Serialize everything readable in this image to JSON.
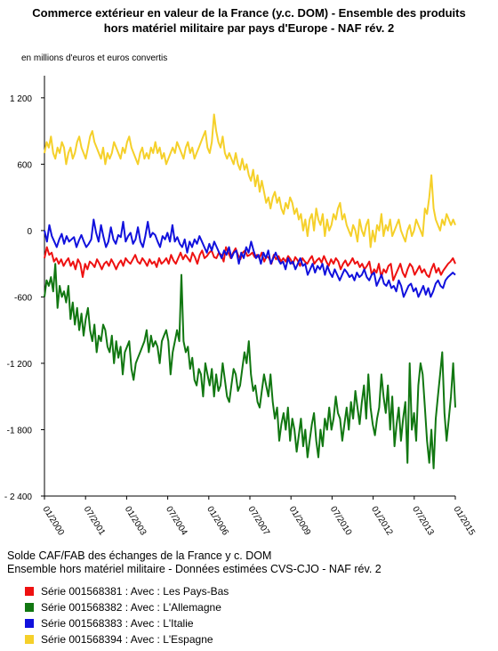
{
  "chart_data": {
    "type": "line",
    "title": "Commerce extérieur en valeur de la France (y.c. DOM) - Ensemble des produits",
    "subtitle": "hors matériel militaire par pays d'Europe - NAF rév. 2",
    "ylabel": "en millions d'euros et euros convertis",
    "ylim": [
      -2400,
      1400
    ],
    "yticks": [
      1200,
      600,
      0,
      -600,
      -1200,
      -1800,
      -2400
    ],
    "ytick_labels": [
      "1 200",
      "600",
      "0",
      "-600",
      "-1 200",
      "-1 800",
      "- 2 400"
    ],
    "xticks": [
      "01/2000",
      "07/2001",
      "01/2003",
      "07/2004",
      "01/2006",
      "07/2007",
      "01/2009",
      "07/2010",
      "01/2012",
      "07/2013",
      "01/2015"
    ],
    "x_start": "01/2000",
    "x_end": "01/2015",
    "caption_line1": "Solde CAF/FAB des échanges de la France y c. DOM",
    "caption_line2": "Ensemble hors matériel militaire - Données estimées CVS-CJO - NAF rév. 2",
    "series": [
      {
        "name": "Série 001568381 : Avec : Les Pays-Bas",
        "color": "#ee1111",
        "values": [
          -250,
          -150,
          -220,
          -200,
          -280,
          -250,
          -300,
          -260,
          -320,
          -280,
          -250,
          -320,
          -280,
          -350,
          -260,
          -300,
          -420,
          -300,
          -350,
          -280,
          -300,
          -330,
          -260,
          -300,
          -350,
          -300,
          -280,
          -320,
          -260,
          -300,
          -350,
          -300,
          -270,
          -320,
          -250,
          -280,
          -300,
          -260,
          -220,
          -280,
          -300,
          -250,
          -280,
          -320,
          -260,
          -300,
          -280,
          -330,
          -250,
          -300,
          -280,
          -250,
          -300,
          -220,
          -270,
          -300,
          -250,
          -200,
          -260,
          -220,
          -250,
          -280,
          -200,
          -240,
          -300,
          -220,
          -180,
          -250,
          -230,
          -200,
          -180,
          -240,
          -250,
          -200,
          -220,
          -280,
          -150,
          -200,
          -250,
          -200,
          -160,
          -220,
          -260,
          -200,
          -180,
          -230,
          -220,
          -200,
          -240,
          -220,
          -250,
          -200,
          -280,
          -230,
          -250,
          -300,
          -220,
          -260,
          -230,
          -280,
          -250,
          -280,
          -230,
          -260,
          -300,
          -240,
          -270,
          -320,
          -250,
          -280,
          -300,
          -260,
          -230,
          -300,
          -270,
          -250,
          -290,
          -230,
          -280,
          -320,
          -260,
          -300,
          -250,
          -280,
          -350,
          -300,
          -270,
          -320,
          -290,
          -250,
          -300,
          -280,
          -330,
          -300,
          -350,
          -320,
          -280,
          -400,
          -350,
          -380,
          -300,
          -420,
          -350,
          -380,
          -320,
          -300,
          -450,
          -400,
          -350,
          -300,
          -380,
          -420,
          -350,
          -300,
          -330,
          -400,
          -360,
          -320,
          -380,
          -350,
          -400,
          -420,
          -350,
          -300,
          -380,
          -340,
          -400,
          -360,
          -330,
          -300,
          -280,
          -250,
          -300
        ]
      },
      {
        "name": "Série 001568382 : Avec : L'Allemagne",
        "color": "#117711",
        "values": [
          -600,
          -450,
          -500,
          -420,
          -550,
          -300,
          -700,
          -500,
          -600,
          -550,
          -650,
          -500,
          -800,
          -650,
          -850,
          -700,
          -900,
          -750,
          -950,
          -800,
          -700,
          -900,
          -1000,
          -850,
          -1100,
          -950,
          -1000,
          -850,
          -900,
          -1050,
          -1100,
          -950,
          -1200,
          -1000,
          -1150,
          -1050,
          -1300,
          -1100,
          -1050,
          -1000,
          -1250,
          -1350,
          -1200,
          -1150,
          -1100,
          -1050,
          -1000,
          -900,
          -1100,
          -950,
          -1050,
          -1000,
          -1050,
          -1200,
          -1000,
          -950,
          -900,
          -1000,
          -1300,
          -1100,
          -1000,
          -900,
          -1000,
          -400,
          -1000,
          -1100,
          -1050,
          -1250,
          -1150,
          -1350,
          -1400,
          -1250,
          -1300,
          -1500,
          -1200,
          -1300,
          -1400,
          -1250,
          -1500,
          -1300,
          -1450,
          -1400,
          -1200,
          -1350,
          -1500,
          -1550,
          -1400,
          -1250,
          -1300,
          -1450,
          -1400,
          -1250,
          -1100,
          -1200,
          -1000,
          -1300,
          -1450,
          -1400,
          -1550,
          -1600,
          -1450,
          -1300,
          -1400,
          -1500,
          -1300,
          -1550,
          -1700,
          -1600,
          -1900,
          -1750,
          -1650,
          -1800,
          -1600,
          -1900,
          -1700,
          -1800,
          -2000,
          -1850,
          -1700,
          -1950,
          -1800,
          -2050,
          -1900,
          -1750,
          -1650,
          -1900,
          -2050,
          -1800,
          -1950,
          -1700,
          -1800,
          -1600,
          -1800,
          -1700,
          -1500,
          -1650,
          -1700,
          -1900,
          -1750,
          -1600,
          -1800,
          -1550,
          -1700,
          -1450,
          -1600,
          -1750,
          -1550,
          -1400,
          -1700,
          -1300,
          -1600,
          -1750,
          -1850,
          -1700,
          -1600,
          -1300,
          -1500,
          -1650,
          -1400,
          -1800,
          -1500,
          -1950,
          -1750,
          -1600,
          -1900,
          -1700,
          -1550,
          -2100,
          -1200,
          -1800,
          -1650,
          -1900,
          -1400,
          -1200,
          -1300,
          -1600,
          -1900,
          -2100,
          -1800,
          -2150,
          -1700,
          -1500,
          -1300,
          -1100,
          -1650,
          -1900,
          -1700,
          -1500,
          -1200,
          -1600
        ]
      },
      {
        "name": "Série 001568383 : Avec : L'Italie",
        "color": "#1111dd",
        "values": [
          0,
          -100,
          50,
          -50,
          -100,
          -150,
          -80,
          -30,
          -120,
          -50,
          -100,
          -80,
          -60,
          -150,
          -90,
          -40,
          -100,
          -150,
          -120,
          -80,
          100,
          -20,
          -100,
          50,
          -60,
          -150,
          -100,
          30,
          -80,
          -120,
          -40,
          -60,
          80,
          -100,
          -50,
          -20,
          -120,
          -80,
          30,
          -100,
          -150,
          -50,
          80,
          -60,
          -20,
          -40,
          -100,
          -150,
          -50,
          -80,
          -20,
          -100,
          50,
          -100,
          -60,
          -120,
          -150,
          -80,
          -200,
          -100,
          -150,
          -80,
          -120,
          -50,
          -100,
          -150,
          -200,
          -120,
          -180,
          -100,
          -150,
          -200,
          -250,
          -180,
          -220,
          -150,
          -250,
          -200,
          -180,
          -300,
          -200,
          -250,
          -150,
          -200,
          -100,
          -180,
          -250,
          -220,
          -300,
          -200,
          -250,
          -180,
          -300,
          -250,
          -200,
          -260,
          -300,
          -280,
          -350,
          -250,
          -300,
          -280,
          -350,
          -300,
          -250,
          -320,
          -300,
          -400,
          -350,
          -300,
          -380,
          -320,
          -350,
          -300,
          -400,
          -320,
          -380,
          -420,
          -350,
          -400,
          -450,
          -400,
          -350,
          -380,
          -420,
          -400,
          -450,
          -380,
          -420,
          -400,
          -350,
          -420,
          -450,
          -400,
          -380,
          -500,
          -450,
          -400,
          -480,
          -500,
          -450,
          -520,
          -500,
          -550,
          -450,
          -500,
          -600,
          -550,
          -500,
          -480,
          -550,
          -520,
          -600,
          -550,
          -500,
          -580,
          -520,
          -600,
          -550,
          -480,
          -450,
          -500,
          -520,
          -450,
          -420,
          -400,
          -380,
          -400
        ]
      },
      {
        "name": "Série 001568394 : Avec : L'Espagne",
        "color": "#f5d02a",
        "values": [
          700,
          800,
          750,
          850,
          700,
          650,
          750,
          700,
          800,
          750,
          600,
          700,
          750,
          650,
          700,
          800,
          850,
          750,
          700,
          650,
          750,
          850,
          900,
          800,
          750,
          700,
          650,
          750,
          600,
          700,
          650,
          700,
          800,
          750,
          700,
          650,
          750,
          700,
          800,
          850,
          750,
          700,
          650,
          600,
          700,
          750,
          650,
          700,
          650,
          750,
          700,
          800,
          700,
          750,
          650,
          700,
          600,
          650,
          700,
          750,
          700,
          800,
          750,
          700,
          650,
          750,
          800,
          700,
          750,
          650,
          700,
          750,
          800,
          850,
          900,
          750,
          700,
          800,
          1050,
          900,
          800,
          750,
          850,
          700,
          650,
          700,
          650,
          600,
          700,
          600,
          550,
          650,
          550,
          600,
          500,
          450,
          550,
          400,
          500,
          350,
          450,
          350,
          250,
          300,
          200,
          300,
          350,
          250,
          300,
          200,
          150,
          250,
          200,
          300,
          250,
          150,
          200,
          100,
          150,
          0,
          100,
          -50,
          100,
          150,
          0,
          200,
          100,
          50,
          150,
          -50,
          100,
          0,
          50,
          150,
          100,
          200,
          250,
          100,
          150,
          50,
          0,
          -50,
          50,
          0,
          -100,
          100,
          0,
          -50,
          50,
          100,
          -150,
          0,
          -100,
          50,
          0,
          150,
          -50,
          50,
          0,
          100,
          -50,
          0,
          50,
          100,
          0,
          -50,
          -100,
          0,
          50,
          -50,
          0,
          100,
          50,
          0,
          -50,
          200,
          150,
          300,
          500,
          200,
          100,
          50,
          0,
          100,
          50,
          150,
          100,
          50,
          100,
          50
        ]
      }
    ],
    "legend_placement": "bottom",
    "grid": false
  }
}
